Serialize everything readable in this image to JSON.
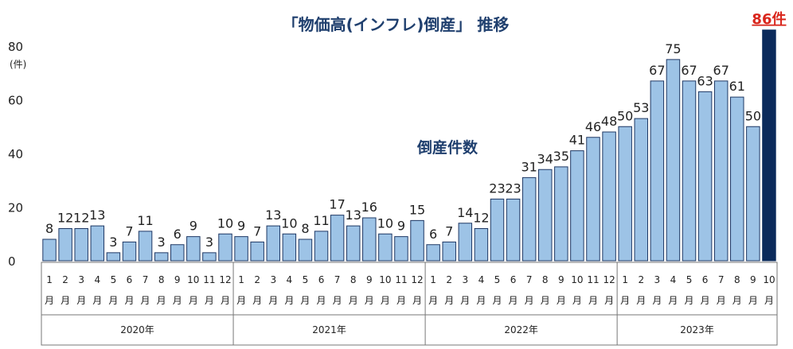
{
  "chart_data": {
    "type": "bar",
    "title": "「物価高(インフレ)倒産」 推移",
    "series_label": "倒産件数",
    "y_unit": "(件)",
    "ylim": [
      0,
      80
    ],
    "yticks": [
      "0",
      "20",
      "40",
      "60",
      "80"
    ],
    "highlight_suffix": "件",
    "highlight_index": 45,
    "years": [
      {
        "label": "2020年",
        "months": 12
      },
      {
        "label": "2021年",
        "months": 12
      },
      {
        "label": "2022年",
        "months": 12
      },
      {
        "label": "2023年",
        "months": 10
      }
    ],
    "month_suffix": "月",
    "categories": [
      "1",
      "2",
      "3",
      "4",
      "5",
      "6",
      "7",
      "8",
      "9",
      "10",
      "11",
      "12",
      "1",
      "2",
      "3",
      "4",
      "5",
      "6",
      "7",
      "8",
      "9",
      "10",
      "11",
      "12",
      "1",
      "2",
      "3",
      "4",
      "5",
      "6",
      "7",
      "8",
      "9",
      "10",
      "11",
      "12",
      "1",
      "2",
      "3",
      "4",
      "5",
      "6",
      "7",
      "8",
      "9",
      "10"
    ],
    "values": [
      8,
      12,
      12,
      13,
      3,
      7,
      11,
      3,
      6,
      9,
      3,
      10,
      9,
      7,
      13,
      10,
      8,
      11,
      17,
      13,
      16,
      10,
      9,
      15,
      6,
      7,
      14,
      12,
      23,
      23,
      31,
      34,
      35,
      41,
      46,
      48,
      50,
      53,
      67,
      75,
      67,
      63,
      67,
      61,
      50,
      86
    ]
  }
}
